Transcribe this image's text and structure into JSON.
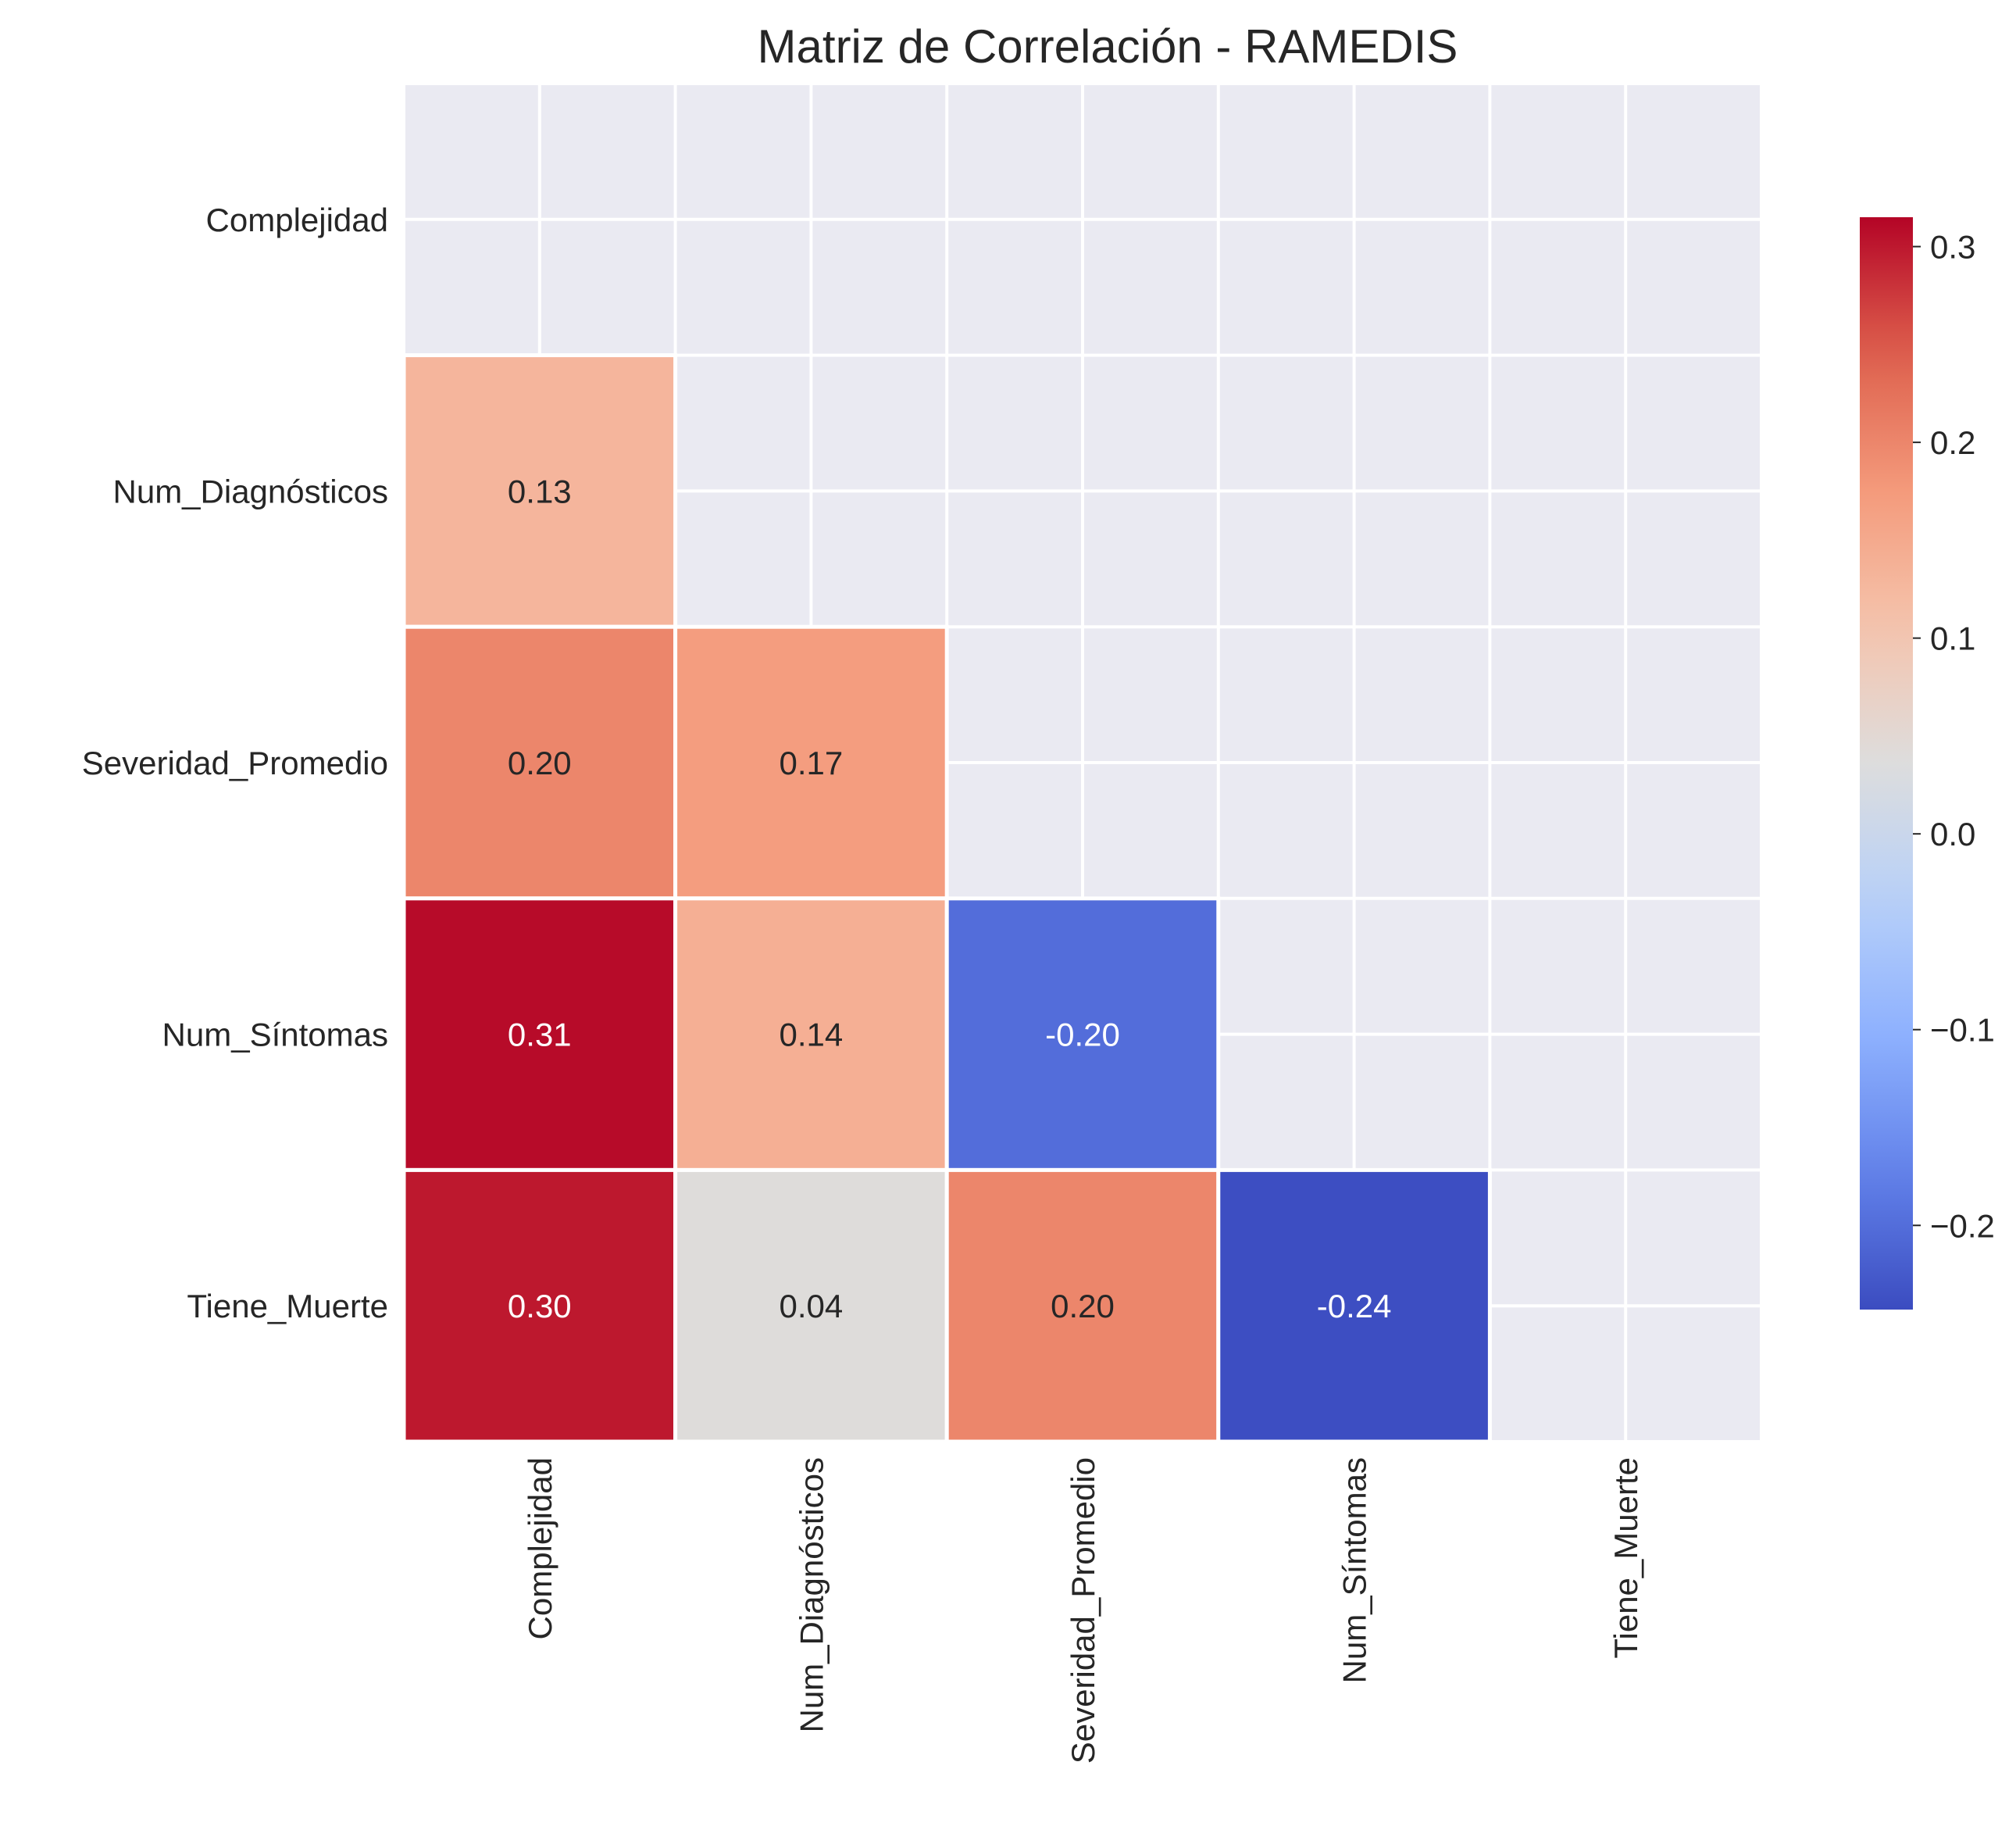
{
  "chart_data": {
    "type": "heatmap",
    "title": "Matriz de Correlación - RAMEDIS",
    "variables": [
      "Complejidad",
      "Num_Diagnósticos",
      "Severidad_Promedio",
      "Num_Síntomas",
      "Tiene_Muerte"
    ],
    "matrix": [
      [
        null,
        null,
        null,
        null,
        null
      ],
      [
        0.13,
        null,
        null,
        null,
        null
      ],
      [
        0.2,
        0.17,
        null,
        null,
        null
      ],
      [
        0.31,
        0.14,
        -0.2,
        null,
        null
      ],
      [
        0.3,
        0.04,
        0.2,
        -0.24,
        null
      ]
    ],
    "cell_labels": [
      [
        null,
        null,
        null,
        null,
        null
      ],
      [
        "0.13",
        null,
        null,
        null,
        null
      ],
      [
        "0.20",
        "0.17",
        null,
        null,
        null
      ],
      [
        "0.31",
        "0.14",
        "-0.20",
        null,
        null
      ],
      [
        "0.30",
        "0.04",
        "0.20",
        "-0.24",
        null
      ]
    ],
    "mask": "upper triangle incl. diagonal",
    "colormap": "coolwarm",
    "color_range": [
      -0.243,
      0.315
    ],
    "colorbar_ticks": [
      0.3,
      0.2,
      0.1,
      0.0,
      -0.1,
      -0.2
    ],
    "colorbar_tick_labels": [
      "0.3",
      "0.2",
      "0.1",
      "0.0",
      "−0.1",
      "−0.2"
    ],
    "grid": true,
    "background_color": "#eaeaf2"
  }
}
